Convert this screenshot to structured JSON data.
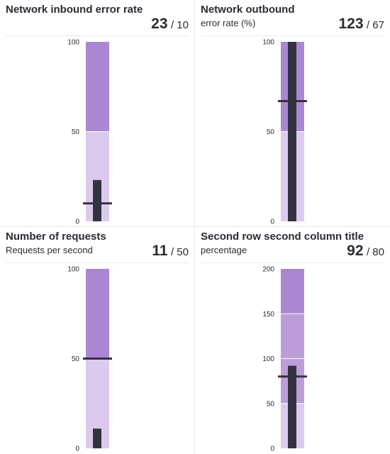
{
  "colors": {
    "range_dark": "#ab87d3",
    "range_mid": "#bd9dd9",
    "range_light": "#dccaee",
    "measure": "#333340",
    "marker": "#333340",
    "separator": "#ffffff"
  },
  "chart_data": [
    {
      "type": "bullet",
      "title": "Network inbound error rate",
      "subtitle": "",
      "value": 23,
      "value_text": "23",
      "target": 10,
      "target_text": "/ 10",
      "ranges": [
        50,
        100
      ],
      "ylim": [
        0,
        100
      ],
      "ticks": [
        {
          "v": 0,
          "label": "0"
        },
        {
          "v": 50,
          "label": "50"
        },
        {
          "v": 100,
          "label": "100"
        }
      ]
    },
    {
      "type": "bullet",
      "title": "Network outbound",
      "subtitle": "error rate (%)",
      "value": 123,
      "value_text": "123",
      "target": 67,
      "target_text": "/ 67",
      "ranges": [
        50,
        100
      ],
      "ylim": [
        0,
        100
      ],
      "ticks": [
        {
          "v": 0,
          "label": "0"
        },
        {
          "v": 50,
          "label": "50"
        },
        {
          "v": 100,
          "label": "100"
        }
      ]
    },
    {
      "type": "bullet",
      "title": "Number of requests",
      "subtitle": "Requests per second",
      "value": 11,
      "value_text": "11",
      "target": 50,
      "target_text": "/ 50",
      "ranges": [
        50,
        100
      ],
      "ylim": [
        0,
        100
      ],
      "ticks": [
        {
          "v": 0,
          "label": "0"
        },
        {
          "v": 50,
          "label": "50"
        },
        {
          "v": 100,
          "label": "100"
        }
      ]
    },
    {
      "type": "bullet",
      "title": "Second row second column title",
      "subtitle": "percentage",
      "value": 92,
      "value_text": "92",
      "target": 80,
      "target_text": "/ 80",
      "ranges": [
        50,
        100,
        150,
        200
      ],
      "ylim": [
        0,
        200
      ],
      "ticks": [
        {
          "v": 0,
          "label": "0"
        },
        {
          "v": 50,
          "label": "50"
        },
        {
          "v": 100,
          "label": "100"
        },
        {
          "v": 150,
          "label": "150"
        },
        {
          "v": 200,
          "label": "200"
        }
      ]
    }
  ]
}
